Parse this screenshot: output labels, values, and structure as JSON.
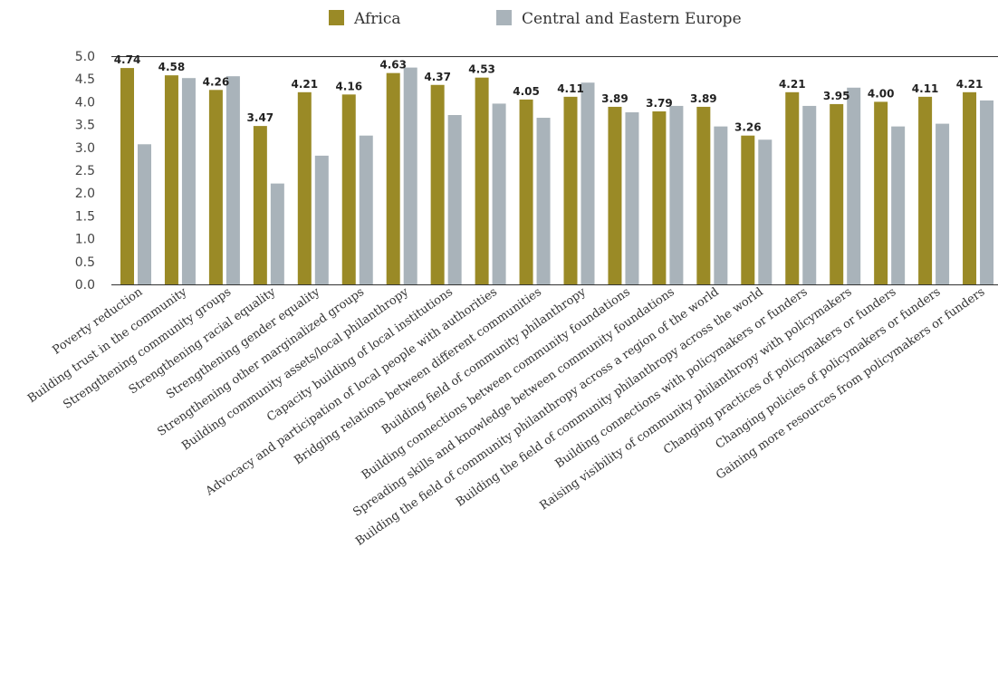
{
  "chart_data": {
    "type": "bar",
    "categories": [
      "Poverty reduction",
      "Building trust in the community",
      "Strengthening community groups",
      "Strengthening racial equality",
      "Strengthening gender equality",
      "Strengthening other marginalized groups",
      "Building community assets/local philanthropy",
      "Capacity building of local institutions",
      "Advocacy and participation of local people with authorities",
      "Bridging relations between different communities",
      "Building field of community philanthropy",
      "Building connections between community foundations",
      "Spreading skills and knowledge between community foundations",
      "Building the field of community philanthropy across a region of the world",
      "Building the field of community philanthropy across the world",
      "Building connections with policymakers or funders",
      "Raising visibility of community philanthropy with policymakers",
      "Changing practices of policymakers or funders",
      "Changing policies of policymakers or funders",
      "Gaining more resources from policymakers or funders"
    ],
    "series": [
      {
        "name": "Africa",
        "color": "#9a8a26",
        "values": [
          4.74,
          4.58,
          4.26,
          3.47,
          4.21,
          4.16,
          4.63,
          4.37,
          4.53,
          4.05,
          4.11,
          3.89,
          3.79,
          3.89,
          3.26,
          4.21,
          3.95,
          4.0,
          4.11,
          4.21
        ],
        "labels": [
          "4.74",
          "4.58",
          "4.26",
          "3.47",
          "4.21",
          "4.16",
          "4.63",
          "4.37",
          "4.53",
          "4.05",
          "4.11",
          "3.89",
          "3.79",
          "3.89",
          "3.26",
          "4.21",
          "3.95",
          "4.00",
          "4.11",
          "4.21"
        ]
      },
      {
        "name": "Central and Eastern Europe",
        "color": "#a9b3ba",
        "values": [
          3.07,
          4.52,
          4.56,
          2.21,
          2.82,
          3.26,
          4.75,
          3.71,
          3.96,
          3.65,
          4.42,
          3.77,
          3.91,
          3.46,
          3.17,
          3.91,
          4.31,
          3.46,
          3.52,
          4.03
        ]
      }
    ],
    "y_ticks": [
      "0.0",
      "0.5",
      "1.0",
      "1.5",
      "2.0",
      "2.5",
      "3.0",
      "3.5",
      "4.0",
      "4.5",
      "5.0"
    ],
    "ylim": [
      0,
      5
    ],
    "grid": false,
    "legend_position": "top-center",
    "title": "",
    "xlabel": "",
    "ylabel": ""
  }
}
